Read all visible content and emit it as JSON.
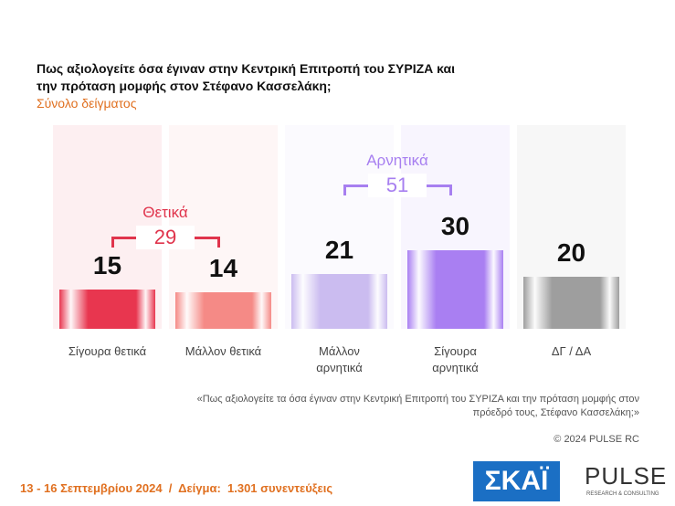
{
  "chart_data": {
    "type": "bar",
    "title": "Πως αξιολογείτε όσα έγιναν στην Κεντρική Επιτροπή του ΣΥΡΙΖΑ και την πρόταση μομφής στον Στέφανο Κασσελάκη;",
    "subtitle": "Σύνολο δείγματος",
    "categories": [
      "Σίγουρα θετικά",
      "Μάλλον θετικά",
      "Μάλλον αρνητικά",
      "Σίγουρα αρνητικά",
      "ΔΓ / ΔΑ"
    ],
    "values": [
      15,
      14,
      21,
      30,
      20
    ],
    "colors": [
      "#e8364f",
      "#f58a86",
      "#cbbcf0",
      "#a97ff2",
      "#9e9e9e"
    ],
    "ylim": [
      0,
      78
    ],
    "groups": [
      {
        "label": "Θετικά",
        "value": 29,
        "color": "#e0344c"
      },
      {
        "label": "Αρνητικά",
        "value": 51,
        "color": "#a77ff0"
      }
    ],
    "note": "«Πως αξιολογείτε τα όσα έγιναν στην Κεντρική Επιτροπή του ΣΥΡΙΖΑ και την πρόταση μομφής στον πρόεδρό τους, Στέφανο Κασσελάκη;»",
    "copyright": "© 2024 PULSE RC",
    "footer": "13 - 16 Σεπτεμβρίου 2024  /  Δείγμα:  1.301 συνεντεύξεις",
    "logos": [
      "ΣΚΑΪ",
      "PULSE",
      "RESEARCH & CONSULTING"
    ]
  }
}
